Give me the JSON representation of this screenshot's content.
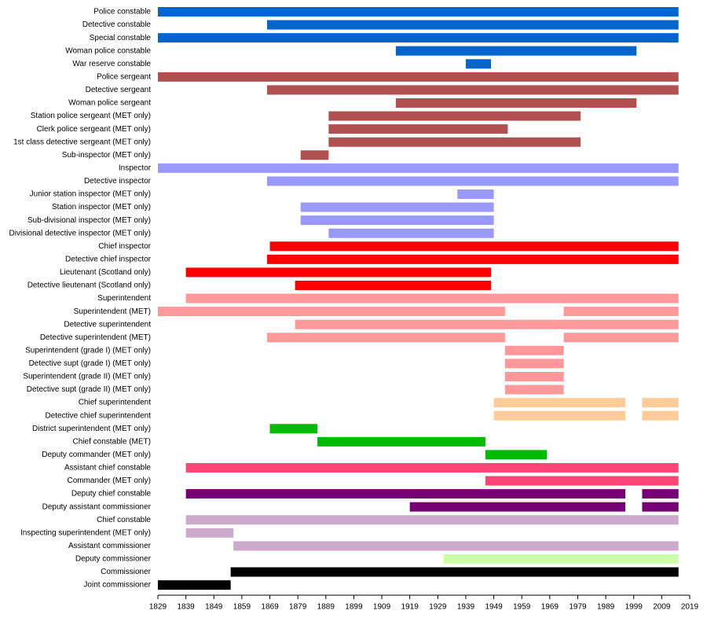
{
  "chart_data": {
    "type": "timeline",
    "xlim": [
      1829,
      2019
    ],
    "xticks": [
      1829,
      1839,
      1849,
      1859,
      1869,
      1879,
      1889,
      1899,
      1909,
      1919,
      1929,
      1939,
      1949,
      1959,
      1969,
      1979,
      1989,
      1999,
      2009,
      2019
    ],
    "rows": [
      {
        "name": "Police constable",
        "color": "#0066cc",
        "bars": [
          {
            "start": 1829,
            "end": 2015
          }
        ]
      },
      {
        "name": "Detective constable",
        "color": "#0066cc",
        "bars": [
          {
            "start": 1868,
            "end": 2015
          }
        ]
      },
      {
        "name": "Special constable",
        "color": "#0066cc",
        "bars": [
          {
            "start": 1829,
            "end": 2015
          }
        ]
      },
      {
        "name": "Woman police constable",
        "color": "#0066cc",
        "bars": [
          {
            "start": 1914,
            "end": 2000
          }
        ]
      },
      {
        "name": "War reserve constable",
        "color": "#0066cc",
        "bars": [
          {
            "start": 1939,
            "end": 1948
          }
        ]
      },
      {
        "name": "Police sergeant",
        "color": "#b05050",
        "bars": [
          {
            "start": 1829,
            "end": 2015
          }
        ]
      },
      {
        "name": "Detective sergeant",
        "color": "#b05050",
        "bars": [
          {
            "start": 1868,
            "end": 2015
          }
        ]
      },
      {
        "name": "Woman police sergeant",
        "color": "#b05050",
        "bars": [
          {
            "start": 1914,
            "end": 2000
          }
        ]
      },
      {
        "name": "Station police sergeant (MET only)",
        "color": "#b05050",
        "bars": [
          {
            "start": 1890,
            "end": 1980
          }
        ]
      },
      {
        "name": "Clerk police sergeant (MET only)",
        "color": "#b05050",
        "bars": [
          {
            "start": 1890,
            "end": 1954
          }
        ]
      },
      {
        "name": "1st class detective sergeant (MET only)",
        "color": "#b05050",
        "bars": [
          {
            "start": 1890,
            "end": 1980
          }
        ]
      },
      {
        "name": "Sub-inspector (MET only)",
        "color": "#b05050",
        "bars": [
          {
            "start": 1880,
            "end": 1890
          }
        ]
      },
      {
        "name": "Inspector",
        "color": "#9999ff",
        "bars": [
          {
            "start": 1829,
            "end": 2015
          }
        ]
      },
      {
        "name": "Detective inspector",
        "color": "#9999ff",
        "bars": [
          {
            "start": 1868,
            "end": 2015
          }
        ]
      },
      {
        "name": "Junior station inspector (MET only)",
        "color": "#9999ff",
        "bars": [
          {
            "start": 1936,
            "end": 1949
          }
        ]
      },
      {
        "name": "Station inspector (MET only)",
        "color": "#9999ff",
        "bars": [
          {
            "start": 1880,
            "end": 1949
          }
        ]
      },
      {
        "name": "Sub-divisional inspector (MET only)",
        "color": "#9999ff",
        "bars": [
          {
            "start": 1880,
            "end": 1949
          }
        ]
      },
      {
        "name": "Divisional detective inspector (MET only)",
        "color": "#9999ff",
        "bars": [
          {
            "start": 1890,
            "end": 1949
          }
        ]
      },
      {
        "name": "Chief inspector",
        "color": "#ff0000",
        "bars": [
          {
            "start": 1869,
            "end": 2015
          }
        ]
      },
      {
        "name": "Detective chief inspector",
        "color": "#ff0000",
        "bars": [
          {
            "start": 1868,
            "end": 2015
          }
        ]
      },
      {
        "name": "Lieutenant (Scotland only)",
        "color": "#ff0000",
        "bars": [
          {
            "start": 1839,
            "end": 1948
          }
        ]
      },
      {
        "name": "Detective lieutenant (Scotland only)",
        "color": "#ff0000",
        "bars": [
          {
            "start": 1878,
            "end": 1948
          }
        ]
      },
      {
        "name": "Superintendent",
        "color": "#ff9999",
        "bars": [
          {
            "start": 1839,
            "end": 2015
          }
        ]
      },
      {
        "name": "Superintendent (MET)",
        "color": "#ff9999",
        "bars": [
          {
            "start": 1829,
            "end": 1953
          },
          {
            "start": 1974,
            "end": 2015
          }
        ]
      },
      {
        "name": "Detective superintendent",
        "color": "#ff9999",
        "bars": [
          {
            "start": 1878,
            "end": 2015
          }
        ]
      },
      {
        "name": "Detective superintendent (MET)",
        "color": "#ff9999",
        "bars": [
          {
            "start": 1868,
            "end": 1953
          },
          {
            "start": 1974,
            "end": 2015
          }
        ]
      },
      {
        "name": "Superintendent (grade I) (MET only)",
        "color": "#ff9999",
        "bars": [
          {
            "start": 1953,
            "end": 1974
          }
        ]
      },
      {
        "name": "Detective supt (grade I) (MET only)",
        "color": "#ff9999",
        "bars": [
          {
            "start": 1953,
            "end": 1974
          }
        ]
      },
      {
        "name": "Superintendent (grade II) (MET only)",
        "color": "#ff9999",
        "bars": [
          {
            "start": 1953,
            "end": 1974
          }
        ]
      },
      {
        "name": "Detective supt (grade II) (MET only)",
        "color": "#ff9999",
        "bars": [
          {
            "start": 1953,
            "end": 1974
          }
        ]
      },
      {
        "name": "Chief superintendent",
        "color": "#ffcc99",
        "bars": [
          {
            "start": 1949,
            "end": 1996
          },
          {
            "start": 2002,
            "end": 2015
          }
        ]
      },
      {
        "name": "Detective chief superintendent",
        "color": "#ffcc99",
        "bars": [
          {
            "start": 1949,
            "end": 1996
          },
          {
            "start": 2002,
            "end": 2015
          }
        ]
      },
      {
        "name": "District superintendent (MET only)",
        "color": "#00bb00",
        "bars": [
          {
            "start": 1869,
            "end": 1886
          }
        ]
      },
      {
        "name": "Chief constable (MET)",
        "color": "#00bb00",
        "bars": [
          {
            "start": 1886,
            "end": 1946
          }
        ]
      },
      {
        "name": "Deputy commander (MET only)",
        "color": "#00bb00",
        "bars": [
          {
            "start": 1946,
            "end": 1968
          }
        ]
      },
      {
        "name": "Assistant chief constable",
        "color": "#ff4477",
        "bars": [
          {
            "start": 1839,
            "end": 2015
          }
        ]
      },
      {
        "name": "Commander (MET only)",
        "color": "#ff4477",
        "bars": [
          {
            "start": 1946,
            "end": 2015
          }
        ]
      },
      {
        "name": "Deputy chief constable",
        "color": "#770077",
        "bars": [
          {
            "start": 1839,
            "end": 1996
          },
          {
            "start": 2002,
            "end": 2015
          }
        ]
      },
      {
        "name": "Deputy assistant commissioner",
        "color": "#770077",
        "bars": [
          {
            "start": 1919,
            "end": 1996
          },
          {
            "start": 2002,
            "end": 2015
          }
        ]
      },
      {
        "name": "Chief constable",
        "color": "#ccaacc",
        "bars": [
          {
            "start": 1839,
            "end": 2015
          }
        ]
      },
      {
        "name": "Inspecting superintendent (MET only)",
        "color": "#ccaacc",
        "bars": [
          {
            "start": 1839,
            "end": 1856
          }
        ]
      },
      {
        "name": "Assistant commissioner",
        "color": "#ccaacc",
        "bars": [
          {
            "start": 1856,
            "end": 2015
          }
        ]
      },
      {
        "name": "Deputy commissioner",
        "color": "#ccffaa",
        "bars": [
          {
            "start": 1931,
            "end": 2015
          }
        ]
      },
      {
        "name": "Commissioner",
        "color": "#000000",
        "bars": [
          {
            "start": 1855,
            "end": 2015
          }
        ]
      },
      {
        "name": "Joint commissioner",
        "color": "#000000",
        "bars": [
          {
            "start": 1829,
            "end": 1855
          }
        ]
      }
    ]
  }
}
